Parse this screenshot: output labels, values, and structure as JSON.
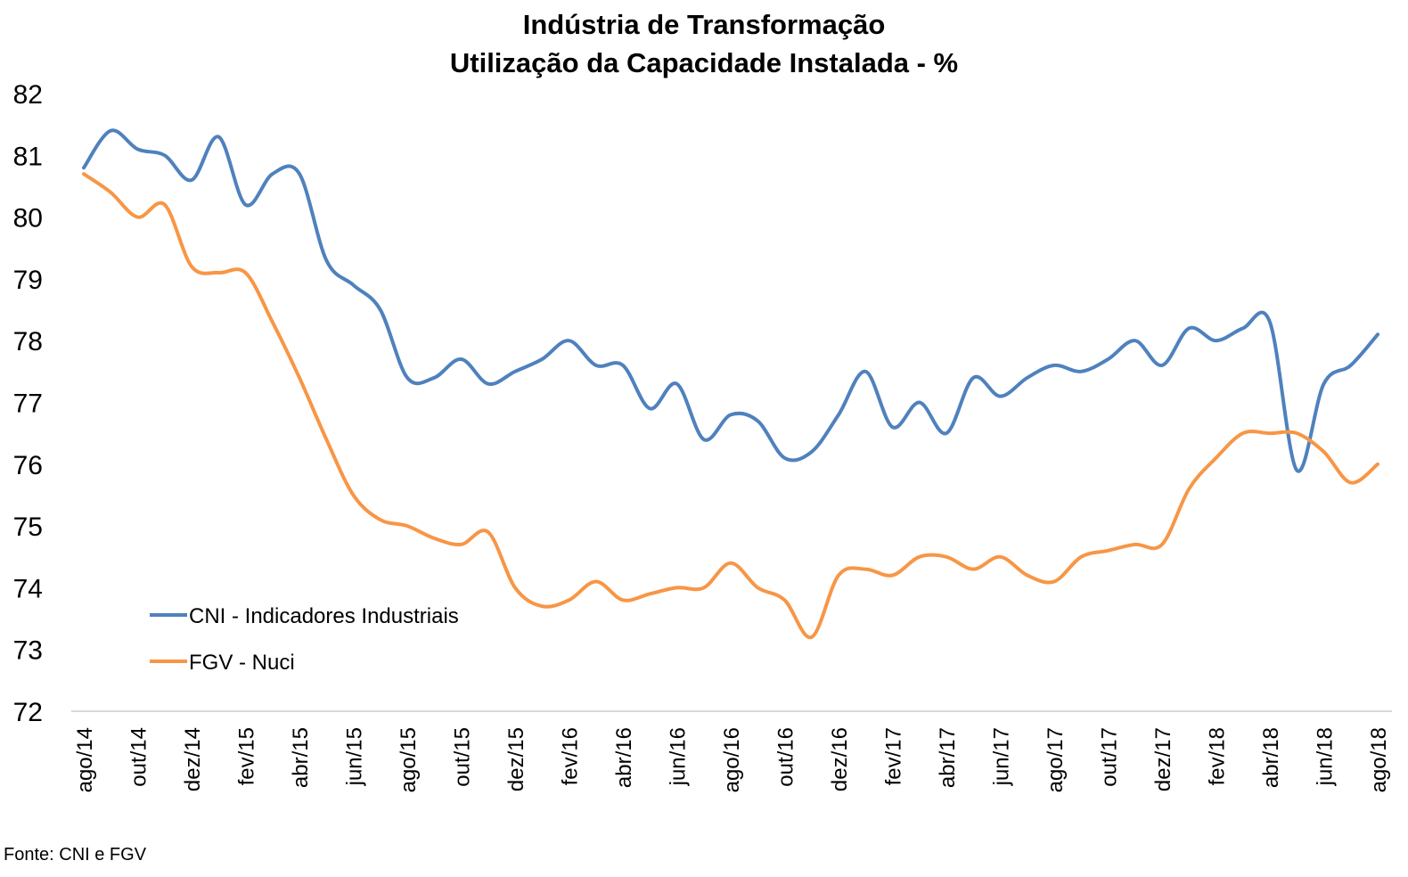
{
  "chart_data": {
    "type": "line",
    "title": "Indústria de Transformação",
    "subtitle": "Utilização da Capacidade Instalada - %",
    "xlabel": "",
    "ylabel": "",
    "ylim": [
      72,
      82
    ],
    "yticks": [
      72,
      73,
      74,
      75,
      76,
      77,
      78,
      79,
      80,
      81,
      82
    ],
    "grid": false,
    "legend_position": "bottom-left",
    "x": [
      "ago/14",
      "set/14",
      "out/14",
      "nov/14",
      "dez/14",
      "jan/15",
      "fev/15",
      "mar/15",
      "abr/15",
      "mai/15",
      "jun/15",
      "jul/15",
      "ago/15",
      "set/15",
      "out/15",
      "nov/15",
      "dez/15",
      "jan/16",
      "fev/16",
      "mar/16",
      "abr/16",
      "mai/16",
      "jun/16",
      "jul/16",
      "ago/16",
      "set/16",
      "out/16",
      "nov/16",
      "dez/16",
      "jan/17",
      "fev/17",
      "mar/17",
      "abr/17",
      "mai/17",
      "jun/17",
      "jul/17",
      "ago/17",
      "set/17",
      "out/17",
      "nov/17",
      "dez/17",
      "jan/18",
      "fev/18",
      "mar/18",
      "abr/18",
      "mai/18",
      "jun/18",
      "jul/18",
      "ago/18"
    ],
    "x_tick_labels": [
      "ago/14",
      "out/14",
      "dez/14",
      "fev/15",
      "abr/15",
      "jun/15",
      "ago/15",
      "out/15",
      "dez/15",
      "fev/16",
      "abr/16",
      "jun/16",
      "ago/16",
      "out/16",
      "dez/16",
      "fev/17",
      "abr/17",
      "jun/17",
      "ago/17",
      "out/17",
      "dez/17",
      "fev/18",
      "abr/18",
      "jun/18",
      "ago/18"
    ],
    "series": [
      {
        "name": "CNI - Indicadores Industriais",
        "color": "#4f81bd",
        "values": [
          80.8,
          81.4,
          81.1,
          81.0,
          80.6,
          81.3,
          80.2,
          80.7,
          80.7,
          79.3,
          78.9,
          78.5,
          77.4,
          77.4,
          77.7,
          77.3,
          77.5,
          77.7,
          78.0,
          77.6,
          77.6,
          76.9,
          77.3,
          76.4,
          76.8,
          76.7,
          76.1,
          76.2,
          76.8,
          77.5,
          76.6,
          77.0,
          76.5,
          77.4,
          77.1,
          77.4,
          77.6,
          77.5,
          77.7,
          78.0,
          77.6,
          78.2,
          78.0,
          78.2,
          78.3,
          75.9,
          77.3,
          77.6,
          78.1
        ]
      },
      {
        "name": "FGV - Nuci",
        "color": "#f79646",
        "values": [
          80.7,
          80.4,
          80.0,
          80.2,
          79.2,
          79.1,
          79.1,
          78.3,
          77.4,
          76.4,
          75.5,
          75.1,
          75.0,
          74.8,
          74.7,
          74.9,
          74.0,
          73.7,
          73.8,
          74.1,
          73.8,
          73.9,
          74.0,
          74.0,
          74.4,
          74.0,
          73.8,
          73.2,
          74.2,
          74.3,
          74.2,
          74.5,
          74.5,
          74.3,
          74.5,
          74.2,
          74.1,
          74.5,
          74.6,
          74.7,
          74.7,
          75.6,
          76.1,
          76.5,
          76.5,
          76.5,
          76.2,
          75.7,
          76.0
        ]
      }
    ]
  },
  "footer": {
    "source": "Fonte: CNI e FGV"
  }
}
